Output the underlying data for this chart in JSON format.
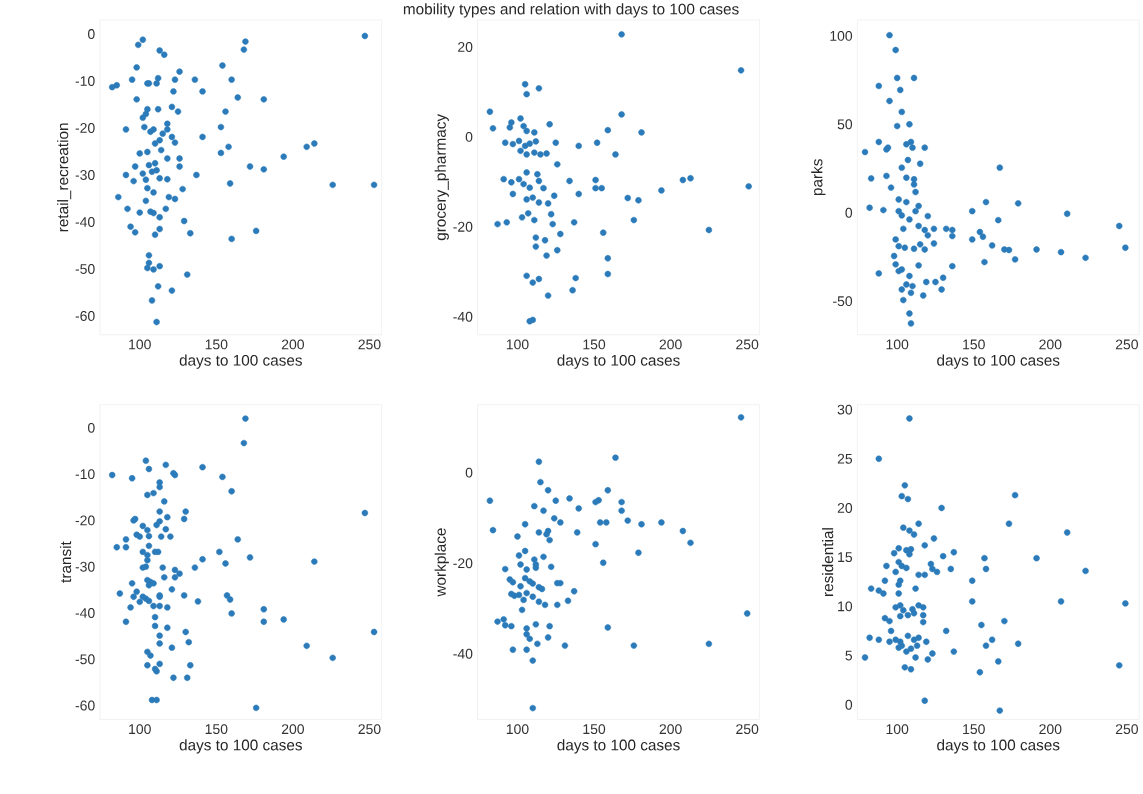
{
  "chart_data": [
    {
      "type": "other",
      "title": "mobility types and relation with days to 100 cases"
    },
    {
      "type": "scatter",
      "xlabel": "days to 100 cases",
      "ylabel": "retail_recreation",
      "color": "#2b7bba",
      "xlim": [
        74,
        258
      ],
      "ylim": [
        -64,
        3
      ],
      "xticks": [
        100,
        150,
        200,
        250
      ],
      "yticks": [
        -60,
        -50,
        -40,
        -30,
        -20,
        -10,
        0
      ],
      "x": [
        102,
        99,
        113,
        116,
        169,
        168,
        247,
        98,
        154,
        126,
        82,
        85,
        95,
        105,
        106,
        112,
        111,
        123,
        136,
        160,
        122,
        141,
        164,
        181,
        98,
        105,
        104,
        102,
        112,
        121,
        125,
        156,
        91,
        103,
        107,
        109,
        118,
        118,
        115,
        121,
        123,
        113,
        110,
        141,
        153,
        158,
        153,
        209,
        214,
        194,
        100,
        105,
        114,
        118,
        126,
        126,
        97,
        106,
        110,
        111,
        108,
        102,
        91,
        96,
        104,
        113,
        118,
        137,
        172,
        181,
        159,
        226,
        253,
        105,
        109,
        128,
        86,
        119,
        123,
        104,
        92,
        100,
        107,
        109,
        113,
        117,
        129,
        94,
        97,
        113,
        110,
        133,
        160,
        176,
        106,
        106,
        105,
        113,
        109,
        131,
        112,
        121,
        108,
        111
      ],
      "values": [
        -1.2,
        -2.3,
        -3.5,
        -4.4,
        -1.6,
        -3.3,
        -0.4,
        -7.1,
        -6.7,
        -8,
        -11.3,
        -10.9,
        -9.7,
        -10.5,
        -10.5,
        -9.4,
        -10.5,
        -9.7,
        -9.7,
        -9.7,
        -12.2,
        -12.2,
        -13.5,
        -13.9,
        -13.9,
        -16,
        -17,
        -17.8,
        -16,
        -15.5,
        -16.5,
        -16.5,
        -20.3,
        -19.8,
        -20.8,
        -20.3,
        -19.1,
        -20.3,
        -21.2,
        -21.9,
        -23.1,
        -22.6,
        -23.3,
        -21.9,
        -19.8,
        -24,
        -25.3,
        -24,
        -23.3,
        -26.1,
        -25.4,
        -25.1,
        -24.7,
        -26.5,
        -26.5,
        -28.2,
        -28.2,
        -27.9,
        -27.5,
        -29,
        -29.3,
        -29.7,
        -30,
        -31.3,
        -31,
        -30.7,
        -30.9,
        -30,
        -28.2,
        -28.8,
        -31.8,
        -32.1,
        -32.1,
        -32.8,
        -33.7,
        -33,
        -34.7,
        -34.7,
        -35.1,
        -35.5,
        -37.2,
        -38,
        -37.8,
        -38.1,
        -39,
        -37.2,
        -39.8,
        -41,
        -42.2,
        -41.5,
        -42.7,
        -42.4,
        -43.6,
        -41.9,
        -47.1,
        -48.7,
        -49.8,
        -49.4,
        -50.1,
        -51.2,
        -53.7,
        -54.6,
        -56.7,
        -61.3
      ]
    },
    {
      "type": "scatter",
      "xlabel": "days to 100 cases",
      "ylabel": "grocery_pharmacy",
      "color": "#2b7bba",
      "xlim": [
        74,
        258
      ],
      "ylim": [
        -44,
        26
      ],
      "xticks": [
        100,
        150,
        200,
        250
      ],
      "yticks": [
        -40,
        -20,
        0,
        20
      ],
      "x": [
        168,
        246,
        105,
        106,
        114,
        82,
        84,
        168,
        102,
        96,
        95,
        104,
        106,
        111,
        121,
        159,
        181,
        92,
        97,
        101,
        105,
        108,
        112,
        125,
        140,
        152,
        102,
        106,
        111,
        115,
        119,
        164,
        126,
        106,
        113,
        91,
        96,
        101,
        104,
        108,
        114,
        117,
        134,
        151,
        151,
        155,
        208,
        213,
        251,
        194,
        97,
        106,
        110,
        114,
        120,
        124,
        140,
        172,
        179,
        103,
        107,
        111,
        122,
        123,
        87,
        93,
        137,
        176,
        156,
        225,
        112,
        118,
        128,
        112,
        119,
        126,
        159,
        159,
        106,
        110,
        114,
        138,
        136,
        120,
        110,
        108
      ],
      "values": [
        22.8,
        14.8,
        11.7,
        9.5,
        10.8,
        5.6,
        1.9,
        5,
        4.1,
        3.2,
        2.1,
        2.4,
        1.3,
        1,
        2.8,
        1.5,
        1,
        -1.3,
        -1.6,
        -0.9,
        -2,
        -1.5,
        -1,
        -1.3,
        -2,
        -1.3,
        -3.1,
        -3.9,
        -3.5,
        -3.9,
        -3.7,
        -3.9,
        -6.1,
        -7.9,
        -8.3,
        -9.4,
        -10.1,
        -9.4,
        -10.5,
        -11.3,
        -9.8,
        -11.4,
        -9.8,
        -9.6,
        -11.4,
        -11.4,
        -9.6,
        -9.2,
        -11,
        -11.9,
        -12.7,
        -13.9,
        -13.5,
        -14.6,
        -14.8,
        -13.1,
        -12.7,
        -13.6,
        -14.1,
        -17.9,
        -17,
        -18.5,
        -17.2,
        -19.4,
        -19.4,
        -19,
        -19,
        -18.5,
        -21.3,
        -20.7,
        -22.4,
        -23,
        -21.6,
        -24.4,
        -26.4,
        -25.2,
        -27,
        -30.5,
        -30.9,
        -32.4,
        -31.6,
        -31.4,
        -34.1,
        -35.3,
        -40.7,
        -41
      ]
    },
    {
      "type": "scatter",
      "xlabel": "days to 100 cases",
      "ylabel": "parks",
      "color": "#2b7bba",
      "xlim": [
        74,
        258
      ],
      "ylim": [
        -69,
        109
      ],
      "xticks": [
        100,
        150,
        200,
        250
      ],
      "yticks": [
        -50,
        0,
        50,
        100
      ],
      "x": [
        95,
        99,
        100,
        111,
        88,
        102,
        95,
        103,
        100,
        108,
        79,
        88,
        93,
        94,
        106,
        109,
        110,
        118,
        107,
        115,
        103,
        167,
        83,
        93,
        96,
        106,
        111,
        111,
        112,
        82,
        91,
        101,
        106,
        101,
        103,
        114,
        112,
        108,
        120,
        149,
        158,
        179,
        166,
        211,
        104,
        114,
        118,
        124,
        120,
        124,
        132,
        136,
        136,
        149,
        154,
        156,
        162,
        99,
        101,
        105,
        111,
        115,
        118,
        170,
        173,
        177,
        191,
        207,
        223,
        157,
        245,
        249,
        98,
        99,
        103,
        101,
        114,
        88,
        108,
        106,
        110,
        103,
        109,
        117,
        104,
        119,
        125,
        130,
        129,
        136,
        108,
        109
      ],
      "values": [
        100.4,
        92,
        76.2,
        76.2,
        71.7,
        69.4,
        63.2,
        57,
        49,
        50,
        34.3,
        40,
        35.8,
        36.8,
        38.7,
        40,
        36.8,
        36.8,
        29.8,
        27.7,
        25.5,
        25.5,
        19.4,
        20.8,
        14.2,
        19.8,
        18.9,
        16,
        11.7,
        2.8,
        1.5,
        7.5,
        6,
        0.9,
        -1.5,
        3.8,
        0.9,
        -3.8,
        -1.9,
        0.9,
        6,
        5.3,
        -4.2,
        -0.6,
        -9.1,
        -7.5,
        -9.8,
        -9.1,
        -12.8,
        -17.4,
        -9.1,
        -9.8,
        -13.2,
        -15.1,
        -10.9,
        -13.6,
        -18.5,
        -15.1,
        -18.9,
        -19.8,
        -20.4,
        -17.9,
        -20.8,
        -20.8,
        -21.1,
        -26.4,
        -20.8,
        -22.3,
        -25.5,
        -27.9,
        -7.5,
        -19.8,
        -24.5,
        -29.2,
        -32.1,
        -33,
        -29.8,
        -34.3,
        -35.8,
        -40.6,
        -41.5,
        -43.4,
        -45.3,
        -46.8,
        -49.4,
        -39.2,
        -39.2,
        -36.8,
        -43.4,
        -30.2,
        -57,
        -62.6
      ]
    },
    {
      "type": "scatter",
      "xlabel": "days to 100 cases",
      "ylabel": "transit",
      "color": "#2b7bba",
      "xlim": [
        74,
        258
      ],
      "ylim": [
        -63,
        5
      ],
      "xticks": [
        100,
        150,
        200,
        250
      ],
      "yticks": [
        -60,
        -50,
        -40,
        -30,
        -20,
        -10,
        0
      ],
      "x": [
        169,
        168,
        104,
        106,
        117,
        82,
        95,
        122,
        123,
        141,
        154,
        113,
        113,
        160,
        105,
        109,
        116,
        113,
        118,
        113,
        111,
        130,
        129,
        96,
        97,
        102,
        105,
        106,
        117,
        114,
        120,
        100,
        98,
        91,
        91,
        85,
        106,
        110,
        112,
        102,
        105,
        164,
        152,
        156,
        141,
        136,
        172,
        214,
        105,
        104,
        102,
        115,
        116,
        123,
        123,
        126,
        95,
        87,
        98,
        96,
        105,
        107,
        106,
        109,
        102,
        104,
        106,
        113,
        113,
        100,
        121,
        129,
        94,
        109,
        113,
        118,
        138,
        157,
        159,
        160,
        181,
        181,
        194,
        91,
        110,
        110,
        118,
        130,
        132,
        113,
        113,
        121,
        209,
        253,
        226,
        247,
        105,
        107,
        105,
        110,
        113,
        111,
        133,
        122,
        131,
        108,
        111,
        176
      ],
      "values": [
        2,
        -3.3,
        -7.1,
        -8.9,
        -8,
        -10.2,
        -10.9,
        -9.8,
        -10.2,
        -8.5,
        -10.6,
        -11.8,
        -12.8,
        -13.7,
        -14.5,
        -14.1,
        -15.9,
        -18.1,
        -19.3,
        -20.2,
        -21,
        -18.1,
        -19.7,
        -20,
        -19.7,
        -21.2,
        -22.1,
        -23.4,
        -21.9,
        -23.5,
        -23.5,
        -23.5,
        -23.1,
        -24.1,
        -25.8,
        -25.8,
        -25.5,
        -26.8,
        -26.8,
        -26.8,
        -27.5,
        -24.1,
        -26.8,
        -29.3,
        -28.4,
        -30.2,
        -28,
        -28.9,
        -28.6,
        -30,
        -30.2,
        -30.2,
        -32.3,
        -30.7,
        -32.3,
        -31.5,
        -33.6,
        -35.8,
        -35.4,
        -36.5,
        -32.9,
        -33.3,
        -34,
        -33.6,
        -36.5,
        -36.9,
        -37.4,
        -36.2,
        -36.5,
        -37.6,
        -34.9,
        -36.2,
        -38.8,
        -38.5,
        -38.5,
        -38.8,
        -37.5,
        -36.2,
        -37.1,
        -40.1,
        -39.2,
        -41.9,
        -41.4,
        -41.9,
        -40.9,
        -42.8,
        -43.2,
        -44.1,
        -46.3,
        -44.9,
        -46.6,
        -47.5,
        -47.1,
        -44.1,
        -49.7,
        -18.4,
        -48.4,
        -49.2,
        -51.3,
        -52.1,
        -51,
        -52.6,
        -51.3,
        -54,
        -54,
        -58.8,
        -58.8,
        -60.5
      ]
    },
    {
      "type": "scatter",
      "xlabel": "days to 100 cases",
      "ylabel": "workplace",
      "color": "#2b7bba",
      "xlim": [
        74,
        258
      ],
      "ylim": [
        -54.5,
        15
      ],
      "xticks": [
        100,
        150,
        200,
        250
      ],
      "yticks": [
        -40,
        -20,
        0
      ],
      "x": [
        246,
        164,
        114,
        115,
        120,
        82,
        84,
        125,
        134,
        140,
        111,
        117,
        151,
        153,
        159,
        168,
        168,
        172,
        181,
        194,
        208,
        213,
        154,
        158,
        124,
        128,
        105,
        100,
        114,
        119,
        121,
        120,
        139,
        151,
        179,
        156,
        101,
        105,
        111,
        117,
        122,
        102,
        106,
        112,
        112,
        92,
        95,
        97,
        105,
        108,
        110,
        114,
        116,
        102,
        101,
        106,
        104,
        110,
        114,
        118,
        98,
        96,
        103,
        126,
        128,
        137,
        133,
        126,
        87,
        91,
        92,
        96,
        106,
        112,
        106,
        108,
        121,
        120,
        113,
        159,
        250,
        97,
        106,
        110,
        131,
        176,
        225,
        110
      ],
      "values": [
        12.2,
        3.3,
        2.4,
        -2.1,
        -3.9,
        -6.2,
        -12.7,
        -6.2,
        -5.7,
        -7.9,
        -7.4,
        -8.4,
        -6.5,
        -6.1,
        -3.9,
        -6.5,
        -8.4,
        -10.6,
        -11.4,
        -11,
        -12.9,
        -15.5,
        -11,
        -11,
        -10.1,
        -11,
        -11.4,
        -14.1,
        -13.2,
        -13.6,
        -14.9,
        -12.9,
        -13.2,
        -15.8,
        -17.7,
        -19.9,
        -18.3,
        -17.3,
        -19.2,
        -18.6,
        -20.8,
        -20.3,
        -21.4,
        -20.3,
        -21,
        -21.3,
        -23.6,
        -24.2,
        -23.3,
        -24,
        -24.5,
        -25.3,
        -25.7,
        -25.1,
        -27,
        -26.6,
        -28.1,
        -27.4,
        -28.5,
        -29.2,
        -27.2,
        -26.8,
        -30.3,
        -24.4,
        -24.4,
        -26.2,
        -28.3,
        -29.2,
        -32.9,
        -32.4,
        -33.7,
        -33.9,
        -34.4,
        -33.5,
        -35.7,
        -36.7,
        -33.9,
        -36.4,
        -37.8,
        -34.2,
        -31.1,
        -39.1,
        -39.1,
        -41.5,
        -38.2,
        -38.2,
        -37.8,
        -52
      ]
    },
    {
      "type": "scatter",
      "xlabel": "days to 100 cases",
      "ylabel": "residential",
      "color": "#2b7bba",
      "xlim": [
        74,
        258
      ],
      "ylim": [
        -1.5,
        30.5
      ],
      "xticks": [
        100,
        150,
        200,
        250
      ],
      "yticks": [
        0,
        5,
        10,
        15,
        20,
        25,
        30
      ],
      "x": [
        108,
        88,
        105,
        103,
        107,
        129,
        177,
        173,
        211,
        104,
        108,
        111,
        114,
        124,
        118,
        101,
        106,
        109,
        108,
        98,
        130,
        137,
        157,
        158,
        191,
        223,
        93,
        101,
        103,
        106,
        99,
        122,
        123,
        126,
        135,
        114,
        118,
        92,
        102,
        101,
        149,
        83,
        88,
        91,
        101,
        112,
        149,
        207,
        249,
        99,
        102,
        104,
        110,
        114,
        117,
        111,
        117,
        92,
        95,
        102,
        107,
        117,
        170,
        155,
        96,
        132,
        82,
        88,
        95,
        99,
        102,
        107,
        111,
        114,
        119,
        101,
        103,
        109,
        113,
        106,
        162,
        158,
        179,
        137,
        123,
        112,
        120,
        79,
        166,
        154,
        105,
        109,
        245,
        118,
        167
      ],
      "values": [
        29.1,
        25,
        22.3,
        21.2,
        20.9,
        20,
        21.3,
        18.4,
        17.5,
        18,
        17.7,
        17.3,
        18.4,
        16.9,
        16.2,
        15.9,
        15.7,
        15.8,
        15.3,
        15.4,
        15.1,
        15.5,
        14.9,
        13.8,
        14.9,
        13.6,
        14.1,
        14.5,
        14.1,
        13.9,
        13.5,
        14.3,
        13.8,
        13.5,
        13.8,
        13.2,
        13.2,
        12.6,
        12.6,
        12.2,
        12.6,
        11.8,
        11.6,
        11.3,
        11.3,
        11.8,
        10.5,
        10.5,
        10.3,
        9.9,
        10.1,
        9.6,
        9.7,
        10.1,
        9.9,
        9.3,
        9.1,
        8.8,
        8.5,
        9,
        9.1,
        8.4,
        8.5,
        8.1,
        7.5,
        7.5,
        6.8,
        6.6,
        6.4,
        6.6,
        6.4,
        7,
        6.6,
        6.8,
        6.4,
        5.8,
        6,
        5.7,
        6,
        5.4,
        6.6,
        6,
        6.2,
        5.4,
        5.2,
        4.8,
        4.6,
        4.8,
        4.4,
        3.3,
        3.8,
        3.6,
        4,
        0.4,
        -0.6
      ]
    }
  ]
}
